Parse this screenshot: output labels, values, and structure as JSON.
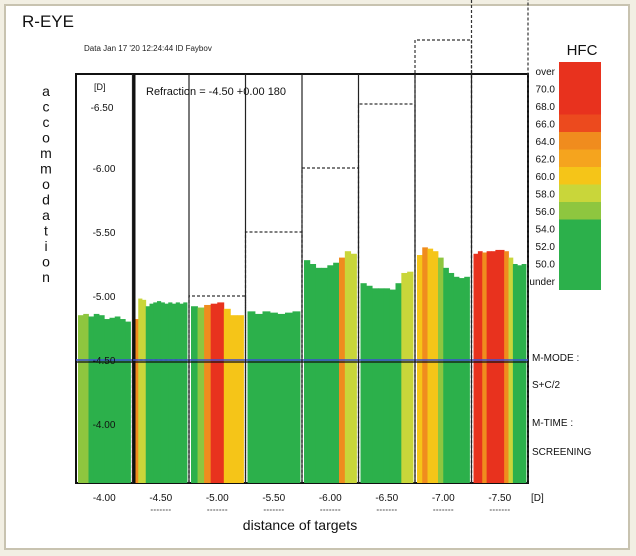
{
  "header": {
    "eye": "R-EYE",
    "date": "Data Jan 17 '20 12:24:44  ID Faybov"
  },
  "chart_data": {
    "type": "bar",
    "ylabel": "accommodation",
    "yunit": "[D]",
    "xlabel": "distance of targets",
    "xunit": "[D]",
    "ylim": [
      -6.5,
      -4.0
    ],
    "y_axis_top_label": "-6.50",
    "y_ticks": [
      {
        "label": "-6.50",
        "value": -6.5
      },
      {
        "label": "-6.00",
        "value": -6.0
      },
      {
        "label": "-5.50",
        "value": -5.5
      },
      {
        "label": "-5.00",
        "value": -5.0
      },
      {
        "label": "-4.50",
        "value": -4.5
      },
      {
        "label": "-4.00",
        "value": -4.0
      }
    ],
    "x_ticks": [
      "-4.00",
      "-4.50",
      "-5.00",
      "-5.50",
      "-6.00",
      "-6.50",
      "-7.00",
      "-7.50"
    ],
    "refraction": "Refraction = -4.50 +0.00 180",
    "reference_line_value": -4.5,
    "target_steps": [
      -4.5,
      -5.0,
      -5.5,
      -6.0,
      -6.5,
      -7.0,
      -7.5
    ],
    "bars": [
      {
        "target": "-4.00",
        "values": [
          -4.85,
          -4.86,
          -4.84,
          -4.86,
          -4.85,
          -4.82,
          -4.83,
          -4.84,
          -4.82,
          -4.8
        ],
        "colors": [
          "#8ec63f",
          "#8ec63f",
          "#2cb04b",
          "#2cb04b",
          "#2cb04b",
          "#2cb04b",
          "#2cb04b",
          "#2cb04b",
          "#2cb04b",
          "#2cb04b"
        ]
      },
      {
        "target": "-4.50",
        "values": [
          -4.82,
          -4.98,
          -4.97,
          -4.92,
          -4.94,
          -4.95,
          -4.96,
          -4.95,
          -4.94,
          -4.95,
          -4.94,
          -4.95,
          -4.94,
          -4.95
        ],
        "colors": [
          "#f08c1e",
          "#c9d63a",
          "#c9d63a",
          "#2cb04b",
          "#2cb04b",
          "#2cb04b",
          "#2cb04b",
          "#2cb04b",
          "#2cb04b",
          "#2cb04b",
          "#2cb04b",
          "#2cb04b",
          "#2cb04b",
          "#2cb04b"
        ]
      },
      {
        "target": "-5.00",
        "values": [
          -4.92,
          -4.91,
          -4.93,
          -4.94,
          -4.95,
          -4.9,
          -4.85,
          -4.85
        ],
        "colors": [
          "#2cb04b",
          "#8ec63f",
          "#f08c1e",
          "#e8321e",
          "#e8321e",
          "#f5c518",
          "#f5c518",
          "#f5c518"
        ]
      },
      {
        "target": "-5.50",
        "values": [
          -4.88,
          -4.86,
          -4.88,
          -4.87,
          -4.86,
          -4.87,
          -4.88
        ],
        "colors": [
          "#2cb04b",
          "#2cb04b",
          "#2cb04b",
          "#2cb04b",
          "#2cb04b",
          "#2cb04b",
          "#2cb04b"
        ]
      },
      {
        "target": "-6.00",
        "values": [
          -5.28,
          -5.25,
          -5.22,
          -5.22,
          -5.24,
          -5.26,
          -5.3,
          -5.35,
          -5.33
        ],
        "colors": [
          "#2cb04b",
          "#2cb04b",
          "#2cb04b",
          "#2cb04b",
          "#2cb04b",
          "#2cb04b",
          "#f08c1e",
          "#c9d63a",
          "#c9d63a"
        ]
      },
      {
        "target": "-6.50",
        "values": [
          -5.1,
          -5.08,
          -5.06,
          -5.06,
          -5.06,
          -5.05,
          -5.1,
          -5.18,
          -5.19
        ],
        "colors": [
          "#2cb04b",
          "#2cb04b",
          "#2cb04b",
          "#2cb04b",
          "#2cb04b",
          "#2cb04b",
          "#2cb04b",
          "#c9d63a",
          "#c9d63a"
        ]
      },
      {
        "target": "-7.00",
        "values": [
          -5.32,
          -5.38,
          -5.37,
          -5.35,
          -5.3,
          -5.22,
          -5.18,
          -5.15,
          -5.14,
          -5.15
        ],
        "colors": [
          "#f5c518",
          "#f08c1e",
          "#f5c518",
          "#f5c518",
          "#8ec63f",
          "#2cb04b",
          "#2cb04b",
          "#2cb04b",
          "#2cb04b",
          "#2cb04b"
        ]
      },
      {
        "target": "-7.50",
        "values": [
          -5.33,
          -5.35,
          -5.34,
          -5.35,
          -5.35,
          -5.36,
          -5.36,
          -5.35,
          -5.3,
          -5.25,
          -5.24,
          -5.25
        ],
        "colors": [
          "#e8321e",
          "#e8321e",
          "#f08c1e",
          "#e8321e",
          "#e8321e",
          "#e8321e",
          "#e8321e",
          "#f08c1e",
          "#c9d63a",
          "#2cb04b",
          "#2cb04b",
          "#2cb04b"
        ]
      }
    ],
    "legend": {
      "title": "HFC",
      "labels": [
        "over",
        "70.0",
        "68.0",
        "66.0",
        "64.0",
        "62.0",
        "60.0",
        "58.0",
        "56.0",
        "54.0",
        "52.0",
        "50.0",
        "under"
      ],
      "colors": [
        "#e8321e",
        "#e8321e",
        "#e8321e",
        "#ec4a1e",
        "#f08c1e",
        "#f5a41e",
        "#f5c518",
        "#c9d63a",
        "#8ec63f",
        "#2cb04b",
        "#2cb04b",
        "#2cb04b",
        "#2cb04b"
      ]
    },
    "side_labels": [
      "M-MODE :",
      "S+C/2",
      "M-TIME :",
      "SCREENING"
    ]
  }
}
